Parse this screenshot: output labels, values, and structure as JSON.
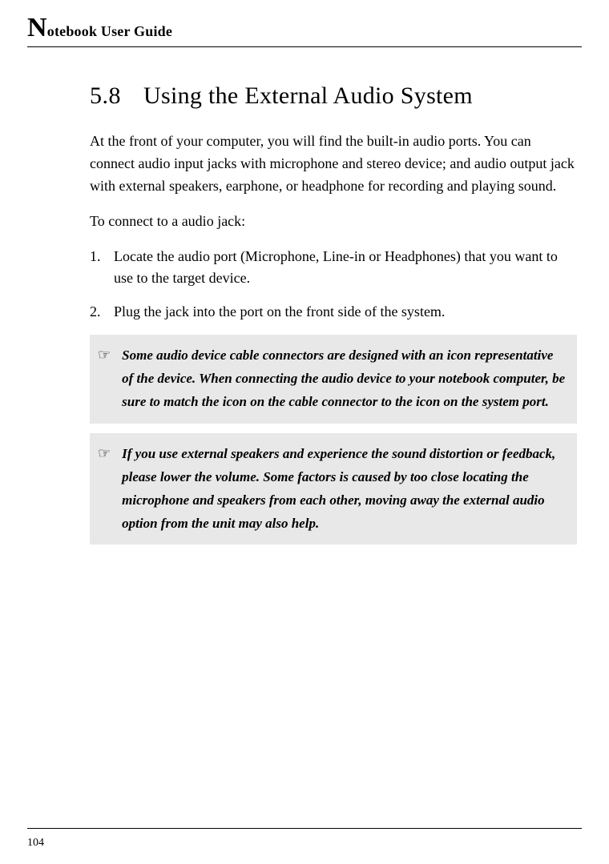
{
  "header": {
    "dropcap": "N",
    "rest": "otebook User Guide"
  },
  "section": {
    "number": "5.8",
    "title": "Using the External Audio System"
  },
  "paragraphs": {
    "intro": "At the front of your computer, you will find the built-in audio ports. You can connect audio input jacks with microphone and stereo device; and audio output jack with external speakers, earphone, or headphone for recording and playing sound.",
    "lead_in": "To connect to a audio jack:"
  },
  "steps": [
    {
      "marker": "1.",
      "text": "Locate the audio port (Microphone, Line-in or Headphones) that you want to use to the target device."
    },
    {
      "marker": "2.",
      "text": "Plug the jack into the port on the front side of the system."
    }
  ],
  "note_marker": "☞",
  "notes": [
    "Some audio device cable connectors are designed with an icon representative of the device. When connecting the audio device to your notebook computer, be sure to match the icon on the cable connector to the icon on the system port.",
    "If you use external speakers and experience the sound distortion or feedback, please lower the volume. Some factors is caused by too close locating the microphone and speakers from each other, moving away the external audio option from the unit may also help."
  ],
  "page_number": "104",
  "colors": {
    "note_bg": "#e8e8e8",
    "text": "#000000",
    "page_bg": "#ffffff"
  },
  "typography": {
    "heading_fontsize_pt": 22,
    "body_fontsize_pt": 13,
    "note_fontsize_pt": 12,
    "running_head_fontsize_pt": 13,
    "dropcap_fontsize_pt": 25
  }
}
